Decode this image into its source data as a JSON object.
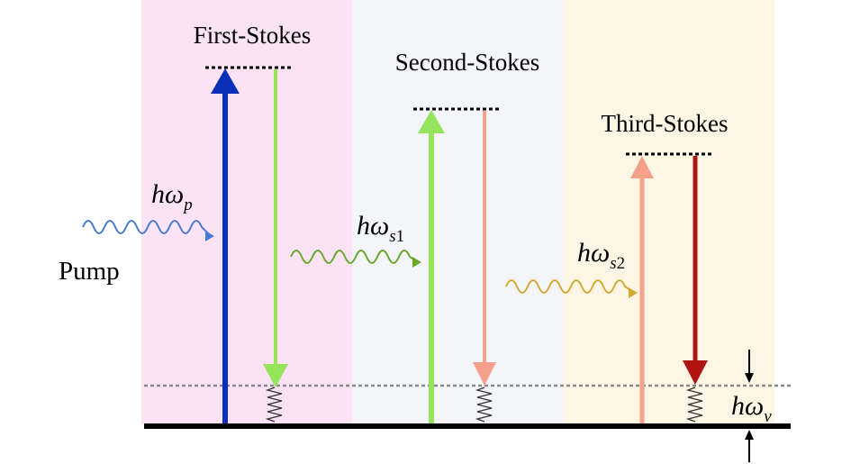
{
  "panels": [
    {
      "title": "First-Stokes",
      "color": "#fce2f5"
    },
    {
      "title": "Second-Stokes",
      "color": "#f3f5f9"
    },
    {
      "title": "Third-Stokes",
      "color": "#fdf6e4"
    }
  ],
  "labels": {
    "pump": "Pump",
    "h_omega": "hω",
    "sub_p": "p",
    "sub_s": "s",
    "sub_s1_num": "1",
    "sub_s2_num": "2",
    "sub_v": "v"
  },
  "colors": {
    "pump_arrow": "#0b2fb8",
    "first_stokes_arrow": "#96e35c",
    "second_stokes_arrow": "#f4a08a",
    "third_stokes_arrow": "#b11212",
    "wave_pump": "#4a7ad8",
    "wave_s1": "#6aa82c",
    "wave_s2": "#d2aa35",
    "dotted_line": "#888888",
    "ground_line": "#000000"
  }
}
